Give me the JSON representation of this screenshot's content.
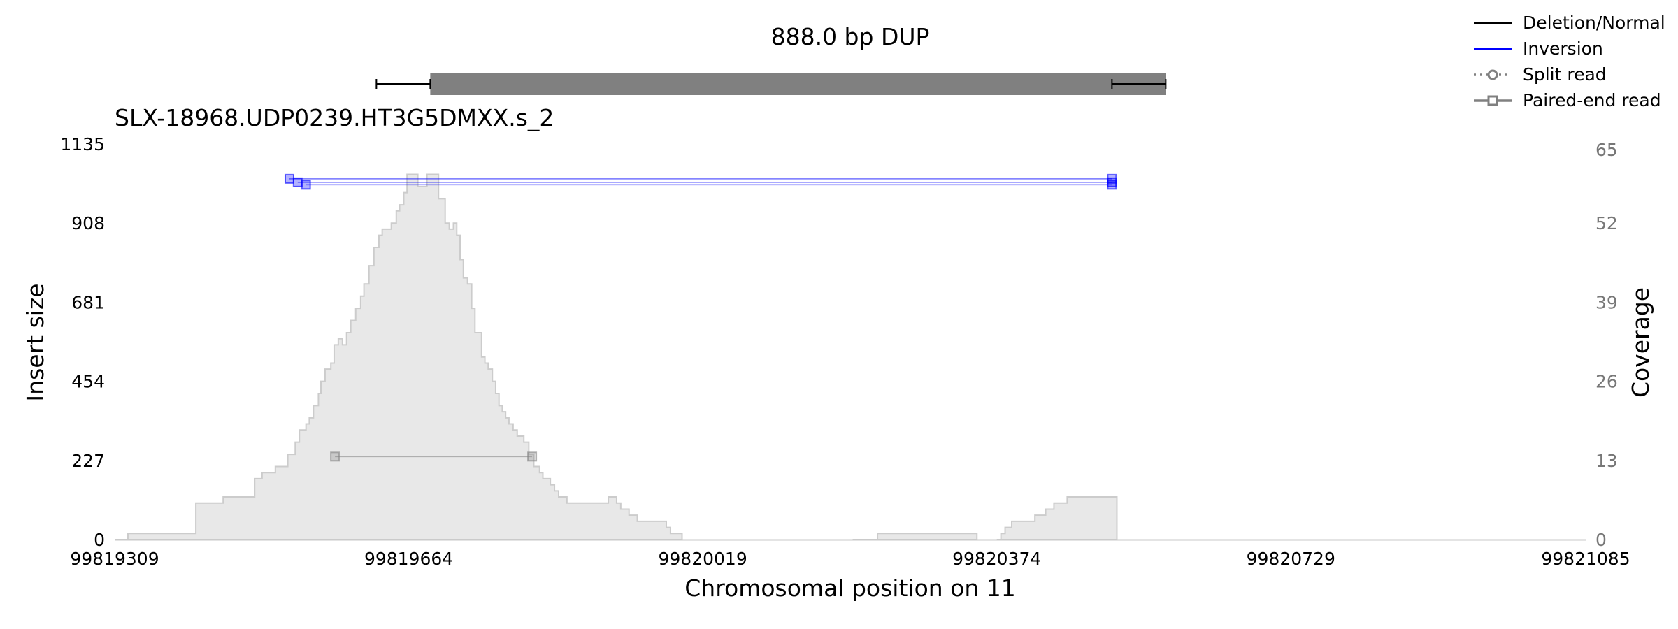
{
  "figure_title": "888.0 bp DUP",
  "sample_title": "SLX-18968.UDP0239.HT3G5DMXX.s_2",
  "legend": [
    {
      "label": "Deletion/Normal",
      "color": "#000000",
      "style": "solid",
      "marker": "none"
    },
    {
      "label": "Inversion",
      "color": "#0000ff",
      "style": "solid",
      "marker": "none"
    },
    {
      "label": "Split read",
      "color": "#808080",
      "style": "dotted",
      "marker": "circle"
    },
    {
      "label": "Paired-end read",
      "color": "#808080",
      "style": "solid",
      "marker": "square"
    }
  ],
  "chart_data": {
    "type": "area",
    "title": "SLX-18968.UDP0239.HT3G5DMXX.s_2",
    "xlabel": "Chromosomal position on 11",
    "ylabel": "Insert size",
    "y2label": "Coverage",
    "xlim": [
      99819309,
      99821085
    ],
    "ylim": [
      0,
      1135
    ],
    "y2lim": [
      0,
      65
    ],
    "xticks": [
      99819309,
      99819664,
      99820019,
      99820374,
      99820729,
      99821085
    ],
    "yticks": [
      0,
      227,
      454,
      681,
      908,
      1135
    ],
    "y2ticks": [
      0,
      13,
      26,
      39,
      52,
      65
    ],
    "variant": {
      "start": 99819690,
      "end": 99820578,
      "ci_start": [
        99819625,
        99819690
      ],
      "ci_end": [
        99820513,
        99820578
      ],
      "color": "#808080"
    },
    "coverage": {
      "color": "#e8e8e8",
      "edge_color": "#cccccc",
      "segments": [
        {
          "x": [
            99819309,
            99819325,
            99819402,
            99819407,
            99819440,
            99819458,
            99819470,
            99819478,
            99819487,
            99819495,
            99819503,
            99819518,
            99819522,
            99819527,
            99819532,
            99819536,
            99819540,
            99819544,
            99819549,
            99819555,
            99819558,
            99819563,
            99819570,
            99819574,
            99819579,
            99819584,
            99819589,
            99819594,
            99819600,
            99819606,
            99819610,
            99819616,
            99819622,
            99819628,
            99819632,
            99819637,
            99819643,
            99819649,
            99819653,
            99819658,
            99819662,
            99819666,
            99819670,
            99819675,
            99819680,
            99819686,
            99819690,
            99819695,
            99819700,
            99819708,
            99819713,
            99819718,
            99819722,
            99819726,
            99819730,
            99819735,
            99819740,
            99819744,
            99819752,
            99819756,
            99819760,
            99819765,
            99819769,
            99819773,
            99819777,
            99819781,
            99819785,
            99819790,
            99819795,
            99819803,
            99819809,
            99819815,
            99819822,
            99819826,
            99819835,
            99819840,
            99819845,
            99819855,
            99819905,
            99819910,
            99819915,
            99819920,
            99819930,
            99819940,
            99819970,
            99819975,
            99819980,
            99819994
          ],
          "y": [
            0,
            1,
            1,
            6,
            7,
            7,
            7,
            10,
            11,
            11,
            12,
            14,
            14,
            16,
            18,
            18,
            19,
            20,
            22,
            24,
            26,
            28,
            29,
            32,
            33,
            32,
            34,
            36,
            38,
            40,
            42,
            45,
            48,
            50,
            51,
            51,
            52,
            54,
            55,
            57,
            60,
            60,
            60,
            58,
            58,
            60,
            60,
            60,
            56,
            52,
            51,
            52,
            50,
            46,
            43,
            42,
            38,
            34,
            30,
            29,
            28,
            26,
            24,
            22,
            21,
            20,
            19,
            18,
            17,
            16,
            14,
            12,
            11,
            10,
            9,
            8,
            7,
            6,
            7,
            7,
            6,
            5,
            4,
            3,
            3,
            2,
            1,
            1
          ]
        },
        {
          "x": [
            99820200,
            99820230,
            99820350
          ],
          "y": [
            0,
            1,
            1
          ]
        },
        {
          "x": [
            99820374,
            99820379,
            99820384,
            99820392,
            99820400,
            99820420,
            99820433,
            99820443,
            99820459,
            99820519
          ],
          "y": [
            0,
            1,
            2,
            3,
            3,
            4,
            5,
            6,
            7,
            7
          ]
        }
      ]
    },
    "pairs": [
      {
        "type": "Inversion",
        "color": "#0000ff",
        "x1": 99819520,
        "x2": 99820513,
        "y": 1035
      },
      {
        "type": "Inversion",
        "color": "#0000ff",
        "x1": 99819530,
        "x2": 99820513,
        "y": 1025
      },
      {
        "type": "Inversion",
        "color": "#0000ff",
        "x1": 99819540,
        "x2": 99820513,
        "y": 1018
      },
      {
        "type": "Paired-end read",
        "color": "#808080",
        "x1": 99819575,
        "x2": 99819813,
        "y": 238
      }
    ]
  }
}
